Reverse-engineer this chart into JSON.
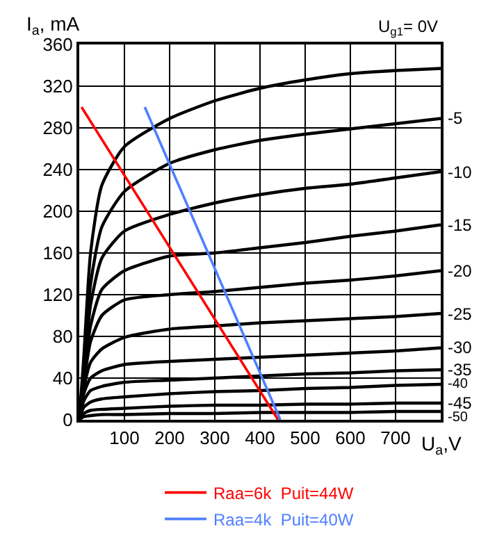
{
  "chart_data": {
    "type": "line",
    "xlabel": "U$_{a}$,V",
    "ylabel": "I$_{a}$, mA",
    "x": [
      0,
      10,
      25,
      50,
      100,
      200,
      300,
      400,
      500,
      600,
      700,
      800
    ],
    "xlim": [
      0,
      800
    ],
    "xticks": [
      100,
      200,
      300,
      400,
      500,
      600,
      700
    ],
    "ylim": [
      0,
      360
    ],
    "yticks": [
      0,
      40,
      80,
      120,
      160,
      200,
      240,
      280,
      320,
      360
    ],
    "grid": true,
    "legend": "bottom",
    "marker": "none",
    "line_style": "solid",
    "series": [
      {
        "name": "U$_{g1}$= 0V",
        "color": "#000000",
        "values": [
          0,
          60,
          160,
          225,
          262,
          289,
          306,
          318,
          326,
          332,
          335,
          337
        ]
      },
      {
        "name": "-5",
        "color": "#000000",
        "values": [
          0,
          50,
          130,
          185,
          219,
          246,
          259,
          268,
          274,
          279,
          284,
          289
        ]
      },
      {
        "name": "-10",
        "color": "#000000",
        "values": [
          0,
          45,
          110,
          155,
          181,
          197,
          208,
          216,
          222,
          226,
          232,
          238
        ]
      },
      {
        "name": "-15",
        "color": "#000000",
        "values": [
          0,
          40,
          90,
          125,
          143,
          157,
          160,
          165,
          170,
          176,
          181,
          187
        ]
      },
      {
        "name": "-20",
        "color": "#000000",
        "values": [
          0,
          35,
          75,
          100,
          115,
          120,
          123,
          127,
          131,
          134,
          138,
          143
        ]
      },
      {
        "name": "-25",
        "color": "#000000",
        "values": [
          0,
          30,
          55,
          68,
          79,
          87,
          90,
          93,
          95,
          97,
          99,
          102
        ]
      },
      {
        "name": "-30",
        "color": "#000000",
        "values": [
          0,
          25,
          40,
          47,
          53,
          56,
          58,
          60,
          62,
          64,
          66,
          69
        ]
      },
      {
        "name": "-35",
        "color": "#000000",
        "values": [
          0,
          18,
          28,
          32,
          36,
          38,
          40,
          42,
          44,
          45,
          47,
          48
        ]
      },
      {
        "name": "-40",
        "color": "#000000",
        "values": [
          0,
          12,
          17,
          20,
          22,
          25,
          27,
          28,
          30,
          31,
          33,
          34
        ]
      },
      {
        "name": "-45",
        "color": "#000000",
        "values": [
          0,
          6,
          9,
          10,
          11,
          13,
          14,
          14,
          15,
          15,
          16,
          16
        ]
      },
      {
        "name": "-50",
        "color": "#000000",
        "values": [
          0,
          3,
          4,
          5,
          5,
          6,
          6,
          7,
          7,
          7,
          8,
          8
        ]
      },
      {
        "name": "Raa=6k  Puit=44W",
        "color": "#ff0000",
        "x": [
          5,
          440
        ],
        "values": [
          300,
          0
        ]
      },
      {
        "name": "Raa=4k  Puit=40W",
        "color": "#4f7fff",
        "x": [
          145,
          445
        ],
        "values": [
          300,
          0
        ]
      }
    ]
  }
}
